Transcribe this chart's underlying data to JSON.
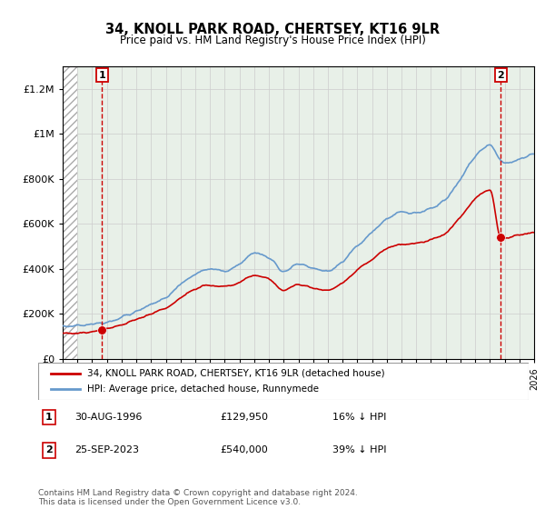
{
  "title": "34, KNOLL PARK ROAD, CHERTSEY, KT16 9LR",
  "subtitle": "Price paid vs. HM Land Registry's House Price Index (HPI)",
  "ylabel_vals": [
    "£0",
    "£200K",
    "£400K",
    "£600K",
    "£800K",
    "£1M",
    "£1.2M"
  ],
  "ylim": [
    0,
    1300000
  ],
  "yticks": [
    0,
    200000,
    400000,
    600000,
    800000,
    1000000,
    1200000
  ],
  "xstart": 1994,
  "xend": 2026,
  "purchase1_year": 1996.67,
  "purchase1_price": 129950,
  "purchase2_year": 2023.73,
  "purchase2_price": 540000,
  "legend_line1": "34, KNOLL PARK ROAD, CHERTSEY, KT16 9LR (detached house)",
  "legend_line2": "HPI: Average price, detached house, Runnymede",
  "annotation1_label": "1",
  "annotation1_date": "30-AUG-1996",
  "annotation1_price": "£129,950",
  "annotation1_hpi": "16% ↓ HPI",
  "annotation2_label": "2",
  "annotation2_date": "25-SEP-2023",
  "annotation2_price": "£540,000",
  "annotation2_hpi": "39% ↓ HPI",
  "footer": "Contains HM Land Registry data © Crown copyright and database right 2024.\nThis data is licensed under the Open Government Licence v3.0.",
  "line_color_red": "#cc0000",
  "line_color_blue": "#6699cc",
  "background_color": "#e8f0e8",
  "grid_color": "#cccccc",
  "marker_color": "#cc0000",
  "dashed_line_color": "#cc0000",
  "hpi_keypoints": [
    [
      1994.0,
      145000
    ],
    [
      1995.0,
      148000
    ],
    [
      1996.0,
      155000
    ],
    [
      1997.0,
      165000
    ],
    [
      1998.0,
      185000
    ],
    [
      1999.0,
      210000
    ],
    [
      2000.0,
      240000
    ],
    [
      2001.0,
      275000
    ],
    [
      2002.0,
      330000
    ],
    [
      2003.0,
      375000
    ],
    [
      2004.0,
      400000
    ],
    [
      2005.0,
      390000
    ],
    [
      2006.0,
      420000
    ],
    [
      2007.0,
      470000
    ],
    [
      2008.0,
      450000
    ],
    [
      2009.0,
      390000
    ],
    [
      2010.0,
      420000
    ],
    [
      2011.0,
      400000
    ],
    [
      2012.0,
      390000
    ],
    [
      2013.0,
      430000
    ],
    [
      2014.0,
      500000
    ],
    [
      2015.0,
      560000
    ],
    [
      2016.0,
      620000
    ],
    [
      2017.0,
      650000
    ],
    [
      2018.0,
      650000
    ],
    [
      2019.0,
      670000
    ],
    [
      2020.0,
      710000
    ],
    [
      2021.0,
      800000
    ],
    [
      2022.0,
      900000
    ],
    [
      2023.0,
      950000
    ],
    [
      2023.73,
      880000
    ],
    [
      2024.0,
      870000
    ],
    [
      2025.0,
      890000
    ],
    [
      2026.0,
      910000
    ]
  ],
  "red_keypoints": [
    [
      1994.0,
      112000
    ],
    [
      1995.0,
      115000
    ],
    [
      1996.0,
      120000
    ],
    [
      1996.67,
      129950
    ],
    [
      1997.0,
      133000
    ],
    [
      1998.0,
      150000
    ],
    [
      1999.0,
      175000
    ],
    [
      2000.0,
      200000
    ],
    [
      2001.0,
      225000
    ],
    [
      2002.0,
      270000
    ],
    [
      2003.0,
      310000
    ],
    [
      2004.0,
      330000
    ],
    [
      2005.0,
      318000
    ],
    [
      2006.0,
      340000
    ],
    [
      2007.0,
      370000
    ],
    [
      2008.0,
      355000
    ],
    [
      2009.0,
      305000
    ],
    [
      2010.0,
      330000
    ],
    [
      2011.0,
      315000
    ],
    [
      2012.0,
      305000
    ],
    [
      2013.0,
      340000
    ],
    [
      2014.0,
      395000
    ],
    [
      2015.0,
      440000
    ],
    [
      2016.0,
      490000
    ],
    [
      2017.0,
      510000
    ],
    [
      2018.0,
      512000
    ],
    [
      2019.0,
      528000
    ],
    [
      2020.0,
      560000
    ],
    [
      2021.0,
      630000
    ],
    [
      2022.0,
      710000
    ],
    [
      2023.0,
      750000
    ],
    [
      2023.73,
      540000
    ],
    [
      2024.0,
      535000
    ],
    [
      2025.0,
      550000
    ],
    [
      2026.0,
      560000
    ]
  ]
}
